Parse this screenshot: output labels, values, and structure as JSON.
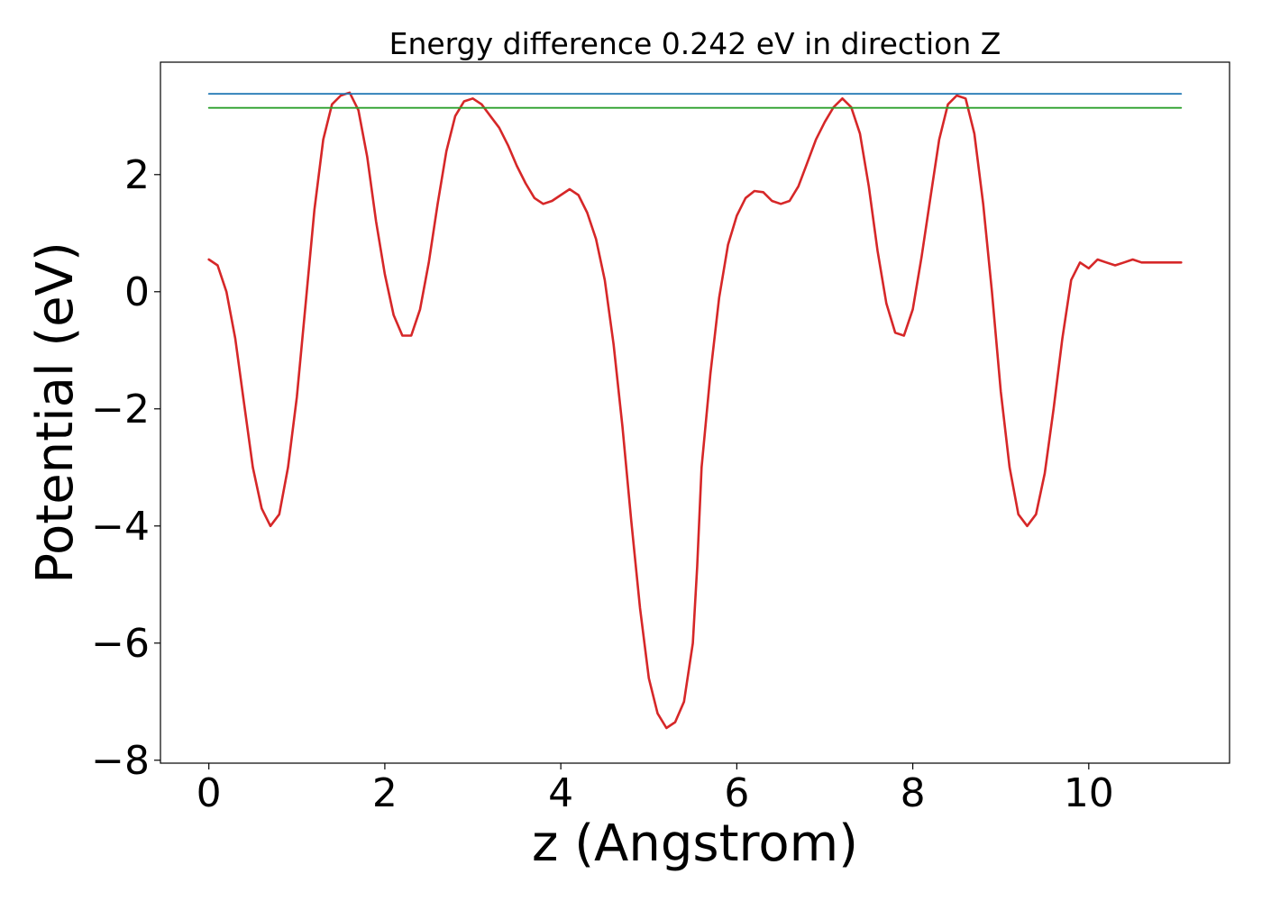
{
  "chart_data": {
    "type": "line",
    "title": "Energy difference 0.242 eV in direction Z",
    "xlabel": "z (Angstrom)",
    "ylabel": "Potential (eV)",
    "xlim": [
      -0.55,
      11.6
    ],
    "ylim": [
      -8.05,
      3.92
    ],
    "xticks": [
      0,
      2,
      4,
      6,
      8,
      10
    ],
    "xtick_labels": [
      "0",
      "2",
      "4",
      "6",
      "8",
      "10"
    ],
    "yticks": [
      2,
      0,
      -2,
      -4,
      -6,
      -8
    ],
    "ytick_labels": [
      "2",
      "0",
      "−2",
      "−4",
      "−6",
      "−8"
    ],
    "grid": false,
    "series": [
      {
        "color": "#d62728",
        "x": [
          0,
          0.1,
          0.2,
          0.3,
          0.4,
          0.5,
          0.6,
          0.7,
          0.8,
          0.9,
          1.0,
          1.1,
          1.2,
          1.3,
          1.4,
          1.5,
          1.6,
          1.7,
          1.8,
          1.9,
          2.0,
          2.1,
          2.2,
          2.3,
          2.4,
          2.5,
          2.6,
          2.7,
          2.8,
          2.9,
          3.0,
          3.1,
          3.2,
          3.3,
          3.4,
          3.5,
          3.6,
          3.7,
          3.8,
          3.9,
          4.0,
          4.1,
          4.2,
          4.3,
          4.4,
          4.5,
          4.6,
          4.7,
          4.8,
          4.9,
          5.0,
          5.1,
          5.2,
          5.3,
          5.4,
          5.5,
          5.55,
          5.6,
          5.7,
          5.8,
          5.9,
          6.0,
          6.1,
          6.2,
          6.3,
          6.4,
          6.5,
          6.6,
          6.7,
          6.8,
          6.9,
          7.0,
          7.1,
          7.2,
          7.3,
          7.4,
          7.5,
          7.6,
          7.7,
          7.8,
          7.9,
          8.0,
          8.1,
          8.2,
          8.3,
          8.4,
          8.5,
          8.6,
          8.7,
          8.8,
          8.9,
          9.0,
          9.1,
          9.2,
          9.3,
          9.4,
          9.5,
          9.6,
          9.7,
          9.8,
          9.9,
          10.0,
          10.1,
          10.2,
          10.3,
          10.4,
          10.5,
          10.6,
          10.7,
          10.8,
          10.9,
          11.0,
          11.05
        ],
        "y": [
          0.55,
          0.45,
          0.0,
          -0.8,
          -1.9,
          -3.0,
          -3.7,
          -4.0,
          -3.8,
          -3.0,
          -1.8,
          -0.2,
          1.4,
          2.6,
          3.2,
          3.35,
          3.4,
          3.1,
          2.3,
          1.2,
          0.3,
          -0.4,
          -0.75,
          -0.75,
          -0.3,
          0.5,
          1.5,
          2.4,
          3.0,
          3.25,
          3.3,
          3.2,
          3.0,
          2.8,
          2.5,
          2.15,
          1.85,
          1.6,
          1.5,
          1.55,
          1.65,
          1.75,
          1.65,
          1.35,
          0.9,
          0.2,
          -0.9,
          -2.3,
          -3.9,
          -5.4,
          -6.6,
          -7.2,
          -7.45,
          -7.35,
          -7.0,
          -6.0,
          -4.7,
          -3.0,
          -1.4,
          -0.1,
          0.8,
          1.3,
          1.6,
          1.72,
          1.7,
          1.55,
          1.5,
          1.55,
          1.8,
          2.2,
          2.6,
          2.9,
          3.15,
          3.3,
          3.15,
          2.7,
          1.8,
          0.7,
          -0.2,
          -0.7,
          -0.75,
          -0.3,
          0.6,
          1.6,
          2.6,
          3.2,
          3.35,
          3.3,
          2.7,
          1.5,
          0.0,
          -1.7,
          -3.0,
          -3.8,
          -4.0,
          -3.8,
          -3.1,
          -2.0,
          -0.8,
          0.2,
          0.5,
          0.4,
          0.55,
          0.5,
          0.45,
          0.5,
          0.55,
          0.5,
          0.5,
          0.5,
          0.5,
          0.5,
          0.5
        ]
      },
      {
        "color": "#1f77b4",
        "x": [
          0,
          11.05
        ],
        "y": [
          3.38,
          3.38
        ]
      },
      {
        "color": "#2ca02c",
        "x": [
          0,
          11.05
        ],
        "y": [
          3.14,
          3.14
        ]
      }
    ]
  }
}
